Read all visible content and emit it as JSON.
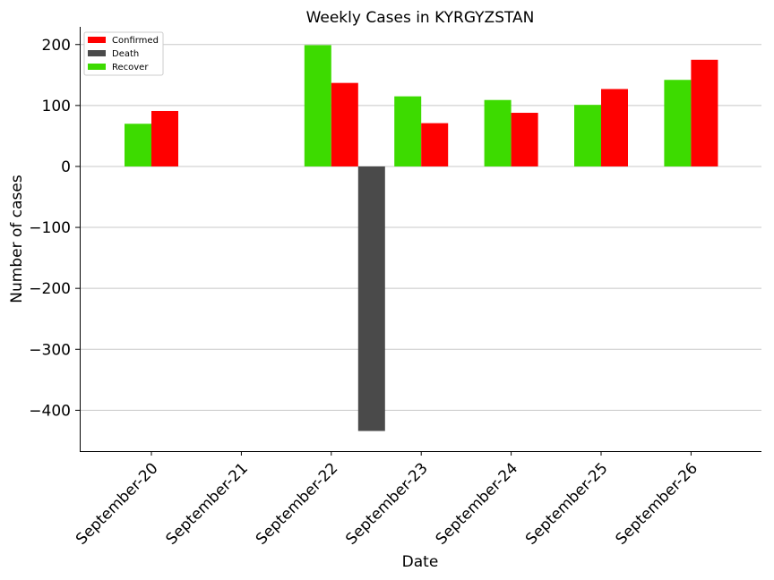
{
  "chart_data": {
    "type": "bar",
    "title": "Weekly Cases in KYRGYZSTAN",
    "xlabel": "Date",
    "ylabel": "Number of cases",
    "categories": [
      "September-20",
      "September-21",
      "September-22",
      "September-23",
      "September-24",
      "September-25",
      "September-26"
    ],
    "series": [
      {
        "name": "Confirmed",
        "color": "#ff0000",
        "values": [
          91,
          0,
          137,
          71,
          88,
          127,
          175
        ]
      },
      {
        "name": "Death",
        "color": "#4a4a4a",
        "values": [
          0,
          0,
          -434,
          0,
          0,
          0,
          0
        ]
      },
      {
        "name": "Recover",
        "color": "#3ddb00",
        "values": [
          70,
          0,
          199,
          115,
          109,
          101,
          142
        ]
      }
    ],
    "ylim": [
      -467,
      229
    ],
    "yticks": [
      200,
      100,
      0,
      -100,
      -200,
      -300,
      -400
    ],
    "ytick_labels": [
      "200",
      "100",
      "0",
      "−100",
      "−200",
      "−300",
      "−400"
    ],
    "grid": "horizontal",
    "legend_position": "top-left"
  }
}
